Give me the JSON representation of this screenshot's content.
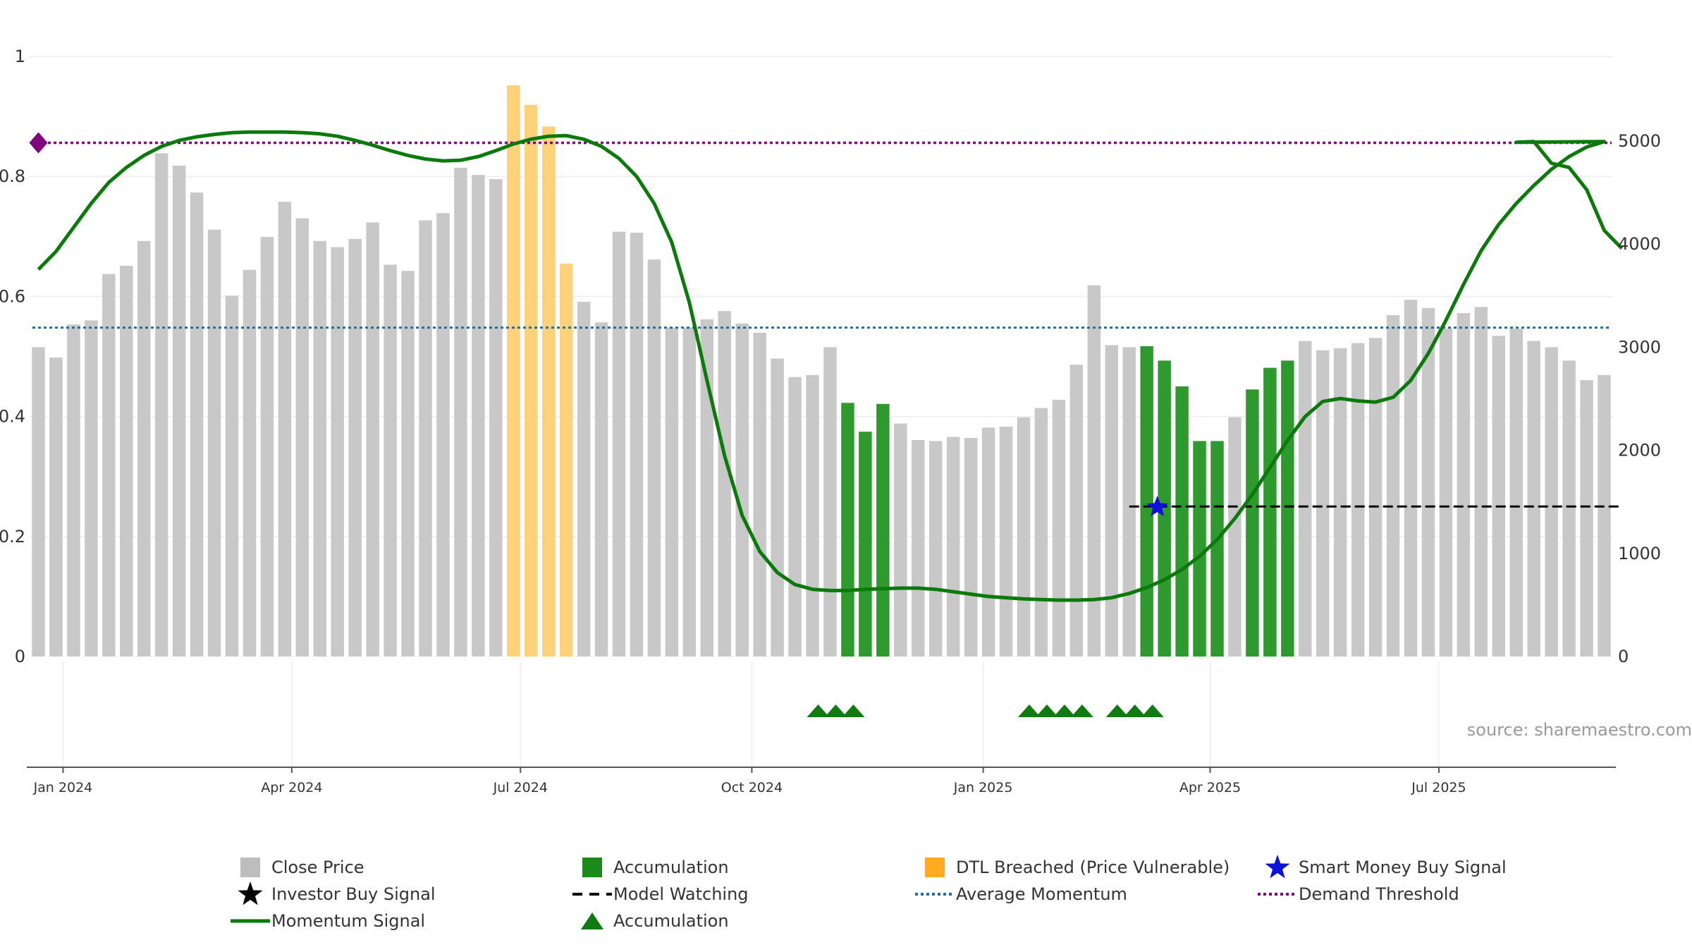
{
  "chart_data": {
    "type": "bar",
    "title": "",
    "source": "source: sharemaestro.com",
    "colors": {
      "close": "#c8c8c8",
      "accumulation": "#2e9a2e",
      "dtl": "#ffd27a",
      "momentum": "#0a7a0a",
      "average": "#1f6fa0",
      "threshold": "#800080",
      "watching": "#000000",
      "smart": "#1010dd",
      "triangle": "#117a11",
      "grid": "#eeeeee",
      "axis": "#555555"
    },
    "left_axis": {
      "ylim": [
        0,
        1
      ],
      "ticks": [
        {
          "v": 0,
          "label": "0"
        },
        {
          "v": 0.2,
          "label": "0.2"
        },
        {
          "v": 0.4,
          "label": "0.4"
        },
        {
          "v": 0.6,
          "label": "0.6"
        },
        {
          "v": 0.8,
          "label": "0.8"
        },
        {
          "v": 1,
          "label": "1"
        }
      ]
    },
    "right_axis": {
      "ylim": [
        0,
        5820
      ],
      "ticks": [
        {
          "v": 0,
          "label": "0"
        },
        {
          "v": 1000,
          "label": "1000"
        },
        {
          "v": 2000,
          "label": "2000"
        },
        {
          "v": 3000,
          "label": "3000"
        },
        {
          "v": 4000,
          "label": "4000"
        },
        {
          "v": 5000,
          "label": "5000"
        }
      ]
    },
    "x_ticks": [
      {
        "week": 1.4,
        "label": "Jan 2024"
      },
      {
        "week": 14.4,
        "label": "Apr 2024"
      },
      {
        "week": 27.4,
        "label": "Jul 2024"
      },
      {
        "week": 40.55,
        "label": "Oct 2024"
      },
      {
        "week": 53.7,
        "label": "Jan 2025"
      },
      {
        "week": 66.6,
        "label": "Apr 2025"
      },
      {
        "week": 79.6,
        "label": "Jul 2025"
      }
    ],
    "bars": [
      3000,
      2900,
      3220,
      3260,
      3710,
      3790,
      4030,
      4880,
      4760,
      4500,
      4140,
      3500,
      3750,
      4070,
      4410,
      4250,
      4030,
      3970,
      4050,
      4210,
      3800,
      3740,
      4230,
      4300,
      4740,
      4670,
      4630,
      5540,
      5350,
      5140,
      3810,
      3440,
      3240,
      4120,
      4110,
      3850,
      3190,
      3190,
      3270,
      3350,
      3230,
      3140,
      2890,
      2710,
      2730,
      3000,
      2460,
      2180,
      2450,
      2260,
      2100,
      2090,
      2130,
      2120,
      2220,
      2230,
      2320,
      2410,
      2490,
      2830,
      3600,
      3020,
      3000,
      3010,
      2870,
      2620,
      2090,
      2090,
      2320,
      2590,
      2800,
      2870,
      3060,
      2970,
      2990,
      3040,
      3090,
      3310,
      3460,
      3380,
      3180,
      3330,
      3390,
      3110,
      3180,
      3060,
      3000,
      2870,
      2680,
      2730
    ],
    "bar_types": "cccccccccccccccccccccccccccddddcccccccccccccccaaaccccccccccccccaaaaacaaaccccccccccccccccccccccccccccccccccccc",
    "momentum": [
      0.645,
      0.675,
      0.715,
      0.755,
      0.79,
      0.815,
      0.835,
      0.85,
      0.86,
      0.866,
      0.87,
      0.873,
      0.874,
      0.874,
      0.874,
      0.873,
      0.871,
      0.867,
      0.86,
      0.852,
      0.843,
      0.835,
      0.829,
      0.826,
      0.827,
      0.833,
      0.843,
      0.854,
      0.862,
      0.867,
      0.868,
      0.862,
      0.85,
      0.83,
      0.8,
      0.755,
      0.69,
      0.59,
      0.46,
      0.335,
      0.235,
      0.175,
      0.14,
      0.12,
      0.112,
      0.11,
      0.11,
      0.112,
      0.113,
      0.114,
      0.114,
      0.112,
      0.108,
      0.104,
      0.1,
      0.098,
      0.096,
      0.095,
      0.094,
      0.094,
      0.095,
      0.098,
      0.105,
      0.115,
      0.128,
      0.145,
      0.167,
      0.195,
      0.23,
      0.27,
      0.315,
      0.36,
      0.4,
      0.425,
      0.43,
      0.426,
      0.424,
      0.432,
      0.46,
      0.505,
      0.56,
      0.62,
      0.676,
      0.72,
      0.755,
      0.785,
      0.812,
      0.833,
      0.849,
      0.858
    ],
    "momentum_end": [
      [
        84.0,
        0.857
      ],
      [
        85.0,
        0.858
      ],
      [
        86.0,
        0.822
      ],
      [
        87.0,
        0.815
      ],
      [
        88.0,
        0.778
      ],
      [
        89.0,
        0.71
      ],
      [
        90.0,
        0.68
      ]
    ],
    "average_momentum": 0.548,
    "demand_threshold": 0.856,
    "demand_marker_week": 0.4,
    "model_watching": {
      "value": 0.25,
      "start_week": 62.0,
      "end_week": 90.0
    },
    "smart_money_signal": {
      "week": 63.6,
      "value": 0.249
    },
    "accumulation_triangles": [
      44,
      45,
      46,
      56,
      57,
      58,
      59,
      61,
      62,
      63
    ],
    "legend": [
      {
        "key": "close",
        "label": "Close Price"
      },
      {
        "key": "accumulation",
        "label": "Accumulation"
      },
      {
        "key": "dtl",
        "label": "DTL Breached (Price Vulnerable)"
      },
      {
        "key": "smart",
        "label": "Smart Money Buy Signal"
      },
      {
        "key": "investor",
        "label": "Investor Buy Signal"
      },
      {
        "key": "watching",
        "label": "Model Watching"
      },
      {
        "key": "average",
        "label": "Average Momentum"
      },
      {
        "key": "threshold",
        "label": "Demand Threshold"
      },
      {
        "key": "momentum",
        "label": "Momentum Signal"
      },
      {
        "key": "triangles",
        "label": "Accumulation"
      }
    ]
  }
}
